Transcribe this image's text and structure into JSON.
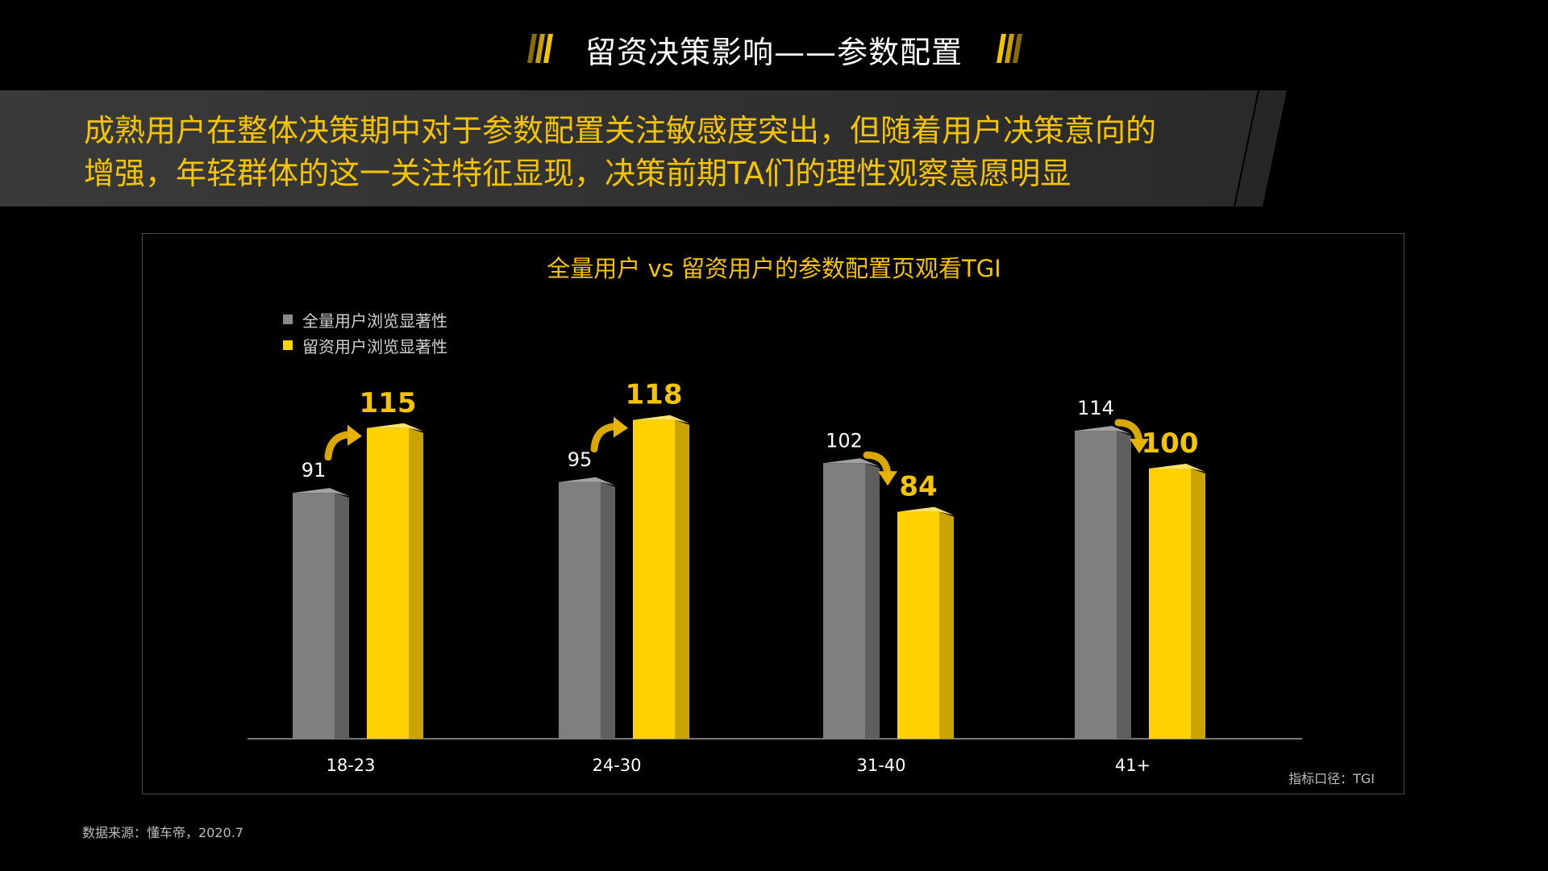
{
  "page_title": "留资决策影响——参数配置",
  "banner_lines": [
    "成熟用户在整体决策期中对于参数配置关注敏感度突出，但随着用户决策意向的",
    "增强，年轻群体的这一关注特征显现，决策前期TA们的理性观察意愿明显"
  ],
  "source": "数据来源：懂车帝，2020.7",
  "colors": {
    "accent": "#f5c400",
    "gray_bar": "#7f7f7f",
    "yellow_bar": "#ffd200"
  },
  "chart_data": {
    "type": "bar",
    "title": "全量用户 vs 留资用户的参数配置页观看TGI",
    "categories": [
      "18-23",
      "24-30",
      "31-40",
      "41+"
    ],
    "series": [
      {
        "name": "全量用户浏览显著性",
        "values": [
          91,
          95,
          102,
          114
        ]
      },
      {
        "name": "留资用户浏览显著性",
        "values": [
          115,
          118,
          84,
          100
        ]
      }
    ],
    "ylim": [
      0,
      160
    ],
    "legend": "top-left",
    "grid": false,
    "note": "指标口径：TGI"
  }
}
